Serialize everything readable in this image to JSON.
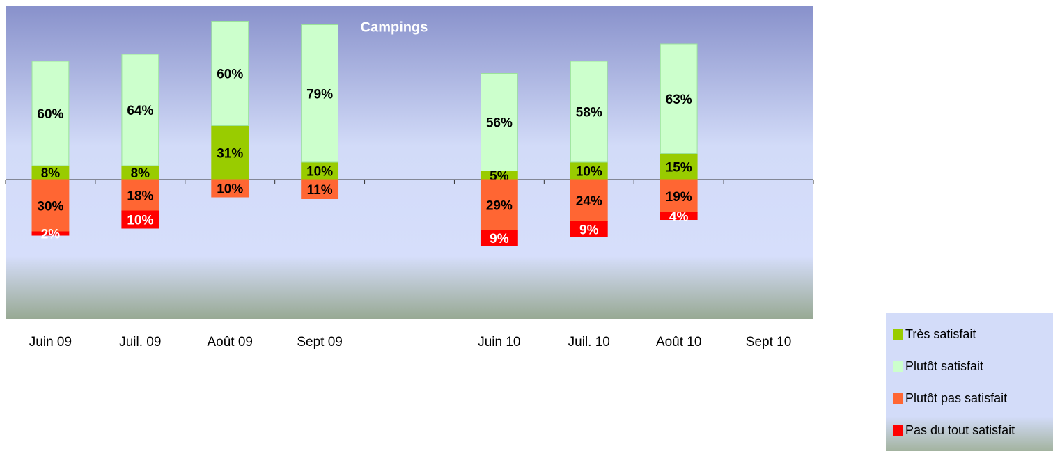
{
  "chart_data": {
    "type": "diverging_stacked_bar",
    "subtitle": "Campings",
    "categories": [
      "Juin 09",
      "Juil. 09",
      "Août 09",
      "Sept 09",
      null,
      "Juin 10",
      "Juil. 10",
      "Août 10",
      "Sept 10"
    ],
    "series": [
      {
        "name": "Très satisfait",
        "color": "#99cc00",
        "values": [
          8,
          8,
          31,
          10,
          null,
          5,
          10,
          15,
          null
        ],
        "value_labels": [
          "8%",
          "8%",
          "31%",
          "10%",
          null,
          "5%",
          "10%",
          "15%",
          null
        ]
      },
      {
        "name": "Plutôt satisfait",
        "color": "#ccffcc",
        "values": [
          60,
          64,
          60,
          79,
          null,
          56,
          58,
          63,
          null
        ],
        "value_labels": [
          "60%",
          "64%",
          "60%",
          "79%",
          null,
          "56%",
          "58%",
          "63%",
          null
        ]
      },
      {
        "name": "Plutôt pas satisfait",
        "color": "#ff6633",
        "values": [
          -30,
          -18,
          -10,
          -11,
          null,
          -29,
          -24,
          -19,
          null
        ],
        "value_labels": [
          "30%",
          "18%",
          "10%",
          "11%",
          null,
          "29%",
          "24%",
          "19%",
          null
        ]
      },
      {
        "name": "Pas du tout satisfait",
        "color": "#ff0000",
        "values": [
          -2,
          -10,
          null,
          null,
          null,
          -9,
          -9,
          -4,
          null
        ],
        "value_labels": [
          "2%",
          "10%",
          null,
          null,
          null,
          "9%",
          "9%",
          "4%",
          null
        ]
      }
    ],
    "ylim": [
      -80,
      100
    ]
  }
}
